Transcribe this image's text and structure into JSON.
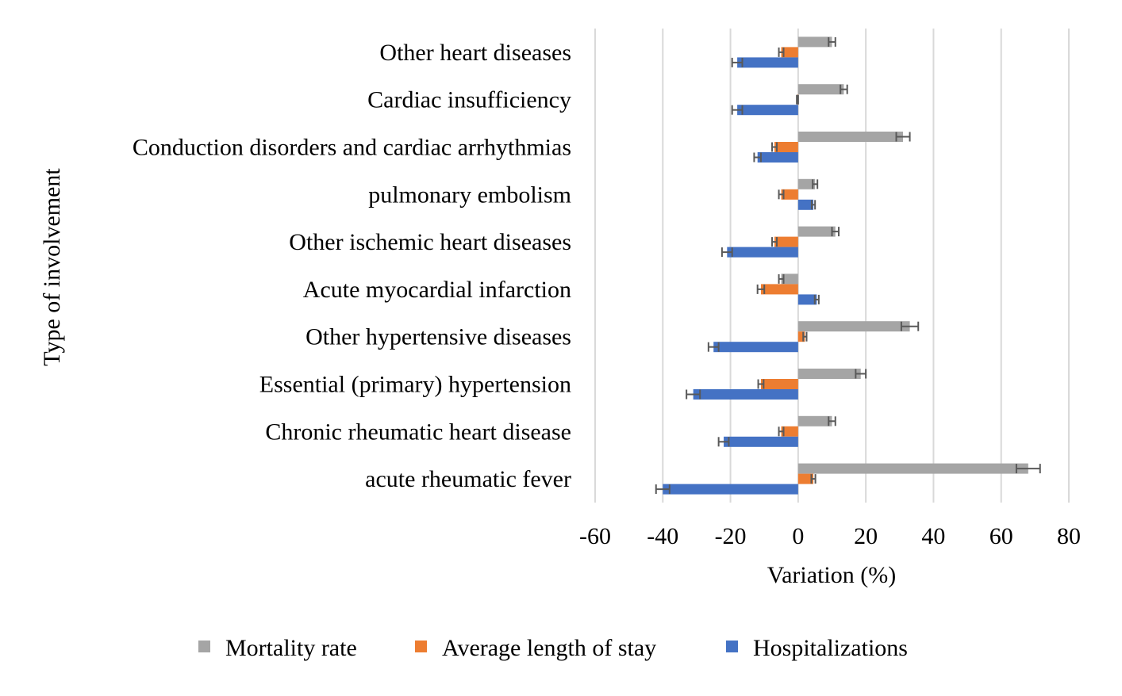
{
  "chart_data": {
    "type": "bar",
    "orientation": "horizontal",
    "ylabel": "Type of involvement",
    "xlabel": "Variation (%)",
    "xlim": [
      -60,
      80
    ],
    "xticks": [
      "-60",
      "-40",
      "-20",
      "0",
      "20",
      "40",
      "60",
      "80"
    ],
    "grid": true,
    "legend_position": "bottom",
    "categories": [
      "Other heart diseases",
      "Cardiac insufficiency",
      "Conduction disorders and cardiac arrhythmias",
      "pulmonary embolism",
      "Other ischemic heart diseases",
      "Acute myocardial infarction",
      "Other hypertensive diseases",
      "Essential (primary) hypertension",
      "Chronic rheumatic heart disease",
      "acute rheumatic fever"
    ],
    "series": [
      {
        "name": "Mortality rate",
        "color": "#a5a5a5",
        "values": [
          10,
          13.5,
          31,
          5,
          11,
          -5,
          33,
          18.5,
          10,
          68
        ],
        "errors": [
          1,
          1,
          2,
          0.7,
          1,
          0.7,
          2.5,
          1.5,
          1,
          3.5
        ]
      },
      {
        "name": "Average length of stay",
        "color": "#ed7d31",
        "values": [
          -5,
          -0.2,
          -7,
          -5,
          -7,
          -11,
          2,
          -11,
          -5,
          4.5
        ],
        "errors": [
          0.7,
          0.2,
          0.7,
          0.7,
          0.7,
          1,
          0.5,
          0.8,
          0.7,
          0.6
        ]
      },
      {
        "name": "Hospitalizations",
        "color": "#4472c4",
        "values": [
          -18,
          -18,
          -12,
          4.5,
          -21,
          5.5,
          -25,
          -31,
          -22,
          -40
        ],
        "errors": [
          1.5,
          1.5,
          1,
          0.5,
          1.5,
          0.6,
          1.5,
          2,
          1.5,
          2
        ]
      }
    ]
  }
}
